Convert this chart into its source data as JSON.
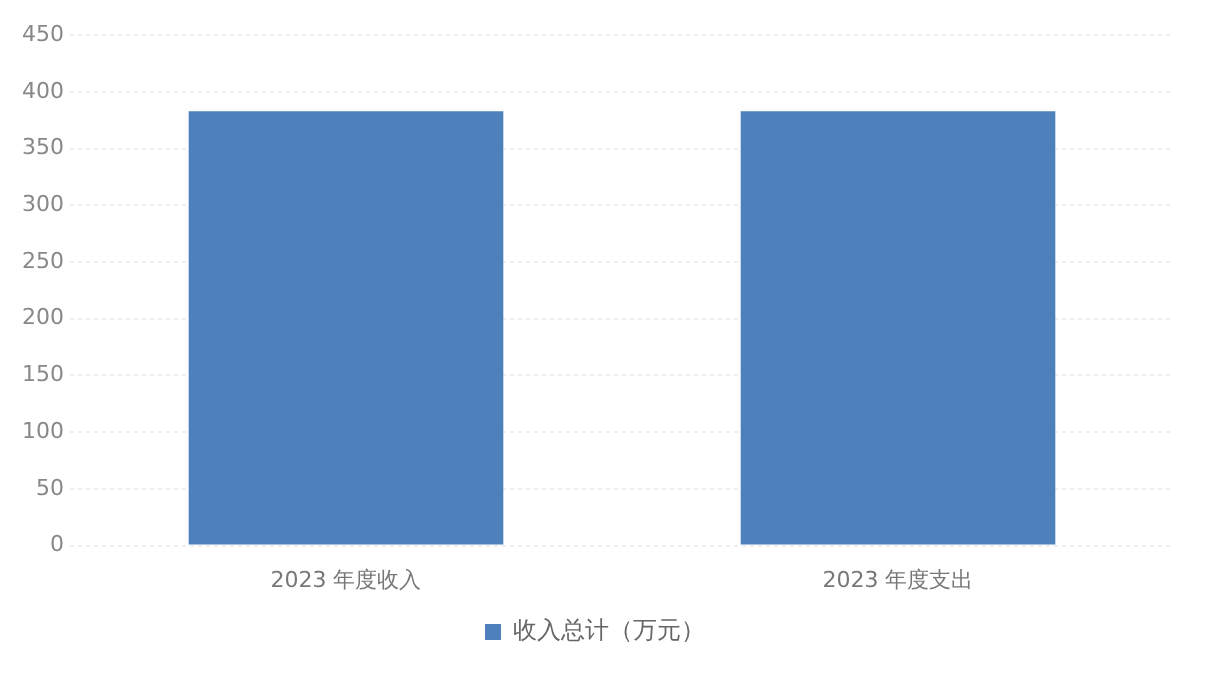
{
  "chart_data": {
    "type": "bar",
    "categories": [
      "2023 年度收入",
      "2023 年度支出"
    ],
    "series": [
      {
        "name": "收入总计（万元）",
        "color": "#4e80bb",
        "values": [
          383,
          383
        ]
      }
    ],
    "ylim": [
      0,
      450
    ],
    "yticks": [
      0,
      50,
      100,
      150,
      200,
      250,
      300,
      350,
      400,
      450
    ],
    "grid": "y",
    "legend": "bottom"
  }
}
